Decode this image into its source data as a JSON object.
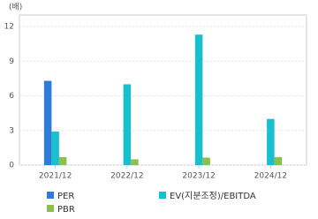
{
  "chart_data": {
    "type": "bar",
    "y_unit": "(배)",
    "categories": [
      "2021/12",
      "2022/12",
      "2023/12",
      "2024/12"
    ],
    "series": [
      {
        "name": "PER",
        "color": "#2f7bd6",
        "values": [
          7.3,
          null,
          null,
          null
        ]
      },
      {
        "name": "EV(지분조정)/EBITDA",
        "color": "#17bfcf",
        "values": [
          2.9,
          7.0,
          11.3,
          4.0
        ]
      },
      {
        "name": "PBR",
        "color": "#8cbf4e",
        "values": [
          0.7,
          0.5,
          0.65,
          0.7
        ]
      }
    ],
    "ylim": [
      0,
      13
    ],
    "yticks": [
      0,
      3,
      6,
      9,
      12
    ],
    "grid": true
  }
}
